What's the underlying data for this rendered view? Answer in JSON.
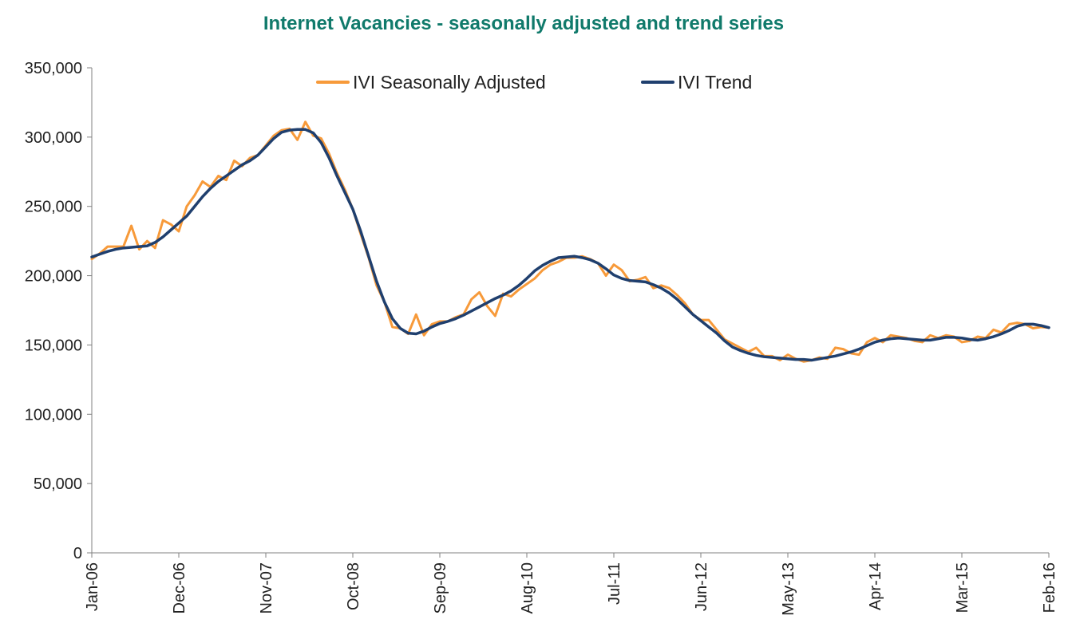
{
  "colors": {
    "title": "#107a6b",
    "sa": "#f79a3a",
    "trend": "#1f3f6e",
    "axis": "#808080"
  },
  "chart_data": {
    "type": "line",
    "title": "Internet Vacancies - seasonally adjusted and trend series",
    "xlabel": "",
    "ylabel": "",
    "ylim": [
      0,
      350000
    ],
    "yticks": [
      0,
      50000,
      100000,
      150000,
      200000,
      250000,
      300000,
      350000
    ],
    "ytick_labels": [
      "0",
      "50,000",
      "100,000",
      "150,000",
      "200,000",
      "250,000",
      "300,000",
      "350,000"
    ],
    "start": "Jan-06",
    "n_points": 122,
    "xtick_labels": [
      "Jan-06",
      "Dec-06",
      "Nov-07",
      "Oct-08",
      "Sep-09",
      "Aug-10",
      "Jul-11",
      "Jun-12",
      "May-13",
      "Apr-14",
      "Mar-15",
      "Feb-16"
    ],
    "xtick_interval_months": 11,
    "legend": {
      "position": "top",
      "entries": [
        "IVI Seasonally Adjusted",
        "IVI Trend"
      ]
    },
    "series": [
      {
        "name": "IVI Seasonally Adjusted",
        "values": [
          212000,
          216000,
          221000,
          221000,
          221000,
          236000,
          219000,
          225000,
          220000,
          240000,
          237000,
          232000,
          250000,
          258000,
          268000,
          264000,
          272000,
          269000,
          283000,
          279000,
          285000,
          287000,
          294000,
          301000,
          305000,
          306000,
          298000,
          311000,
          301000,
          299000,
          288000,
          274000,
          262000,
          248000,
          230000,
          213000,
          193000,
          181000,
          163000,
          162000,
          158000,
          172000,
          157000,
          165000,
          167000,
          167000,
          170000,
          172000,
          183000,
          188000,
          178000,
          171000,
          187000,
          185000,
          190000,
          194000,
          198000,
          204000,
          208000,
          210000,
          213000,
          213000,
          214000,
          212000,
          209000,
          200000,
          208000,
          204000,
          196000,
          197000,
          199000,
          191000,
          193000,
          191000,
          186000,
          180000,
          172000,
          168000,
          168000,
          161000,
          154000,
          151000,
          148000,
          145000,
          148000,
          142000,
          142000,
          139000,
          143000,
          140000,
          138000,
          139000,
          141000,
          140000,
          148000,
          147000,
          144000,
          143000,
          152000,
          155000,
          152000,
          157000,
          156000,
          155000,
          153000,
          152000,
          157000,
          155000,
          157000,
          156000,
          152000,
          153000,
          156000,
          155000,
          161000,
          159000,
          165000,
          166000,
          165000,
          162000,
          163000,
          162500
        ]
      },
      {
        "name": "IVI Trend",
        "values": [
          213500,
          215500,
          217500,
          219000,
          220000,
          220500,
          221000,
          221500,
          224000,
          228000,
          233000,
          238000,
          243000,
          250000,
          257000,
          263000,
          268000,
          272000,
          276000,
          280000,
          283000,
          287000,
          293000,
          299000,
          303500,
          305000,
          305500,
          305500,
          303000,
          296000,
          285000,
          272000,
          260000,
          248000,
          232000,
          214000,
          196000,
          181000,
          169000,
          162000,
          158500,
          158000,
          160000,
          163000,
          165500,
          167000,
          169000,
          171500,
          174500,
          177500,
          180500,
          183500,
          186000,
          189000,
          193000,
          198000,
          203500,
          207500,
          210500,
          213000,
          213500,
          214000,
          213000,
          211500,
          209000,
          205000,
          200500,
          198000,
          196500,
          196000,
          195500,
          193500,
          191000,
          187500,
          183000,
          177500,
          172000,
          167500,
          163000,
          158500,
          153000,
          148500,
          146000,
          144000,
          142500,
          141500,
          141000,
          140500,
          140000,
          139500,
          139500,
          139000,
          140000,
          141000,
          142000,
          143500,
          145000,
          147000,
          149500,
          152000,
          153500,
          154500,
          155000,
          154500,
          154000,
          153500,
          153500,
          154500,
          155500,
          155500,
          155000,
          154000,
          153500,
          154500,
          156000,
          158000,
          160500,
          163500,
          165000,
          165000,
          164000,
          162500
        ]
      }
    ]
  }
}
